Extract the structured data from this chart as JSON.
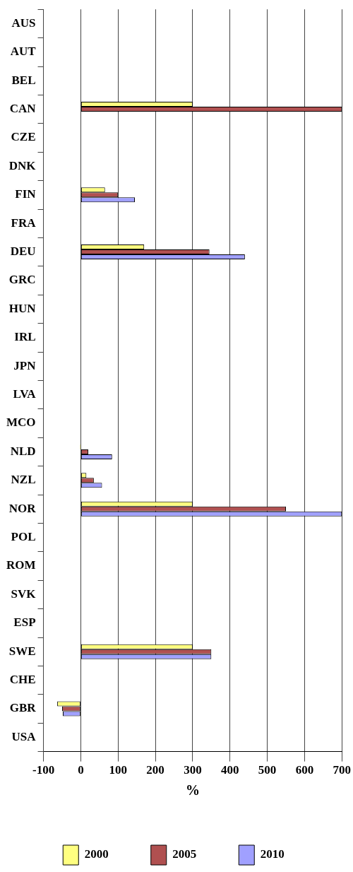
{
  "chart_data": {
    "type": "bar",
    "orientation": "horizontal",
    "xlabel": "%",
    "categories": [
      "AUS",
      "AUT",
      "BEL",
      "CAN",
      "CZE",
      "DNK",
      "FIN",
      "FRA",
      "DEU",
      "GRC",
      "HUN",
      "IRL",
      "JPN",
      "LVA",
      "MCO",
      "NLD",
      "NZL",
      "NOR",
      "POL",
      "ROM",
      "SVK",
      "ESP",
      "SWE",
      "CHE",
      "GBR",
      "USA"
    ],
    "series": [
      {
        "name": "2000",
        "color": "#ffff80",
        "values": [
          null,
          null,
          null,
          300,
          null,
          null,
          65,
          null,
          170,
          null,
          null,
          null,
          null,
          null,
          null,
          -2,
          15,
          300,
          null,
          null,
          null,
          null,
          300,
          null,
          -63,
          null
        ]
      },
      {
        "name": "2005",
        "color": "#b05050",
        "values": [
          null,
          null,
          null,
          700,
          null,
          null,
          100,
          null,
          345,
          null,
          null,
          null,
          null,
          null,
          null,
          20,
          35,
          550,
          null,
          null,
          null,
          null,
          350,
          null,
          -50,
          null
        ]
      },
      {
        "name": "2010",
        "color": "#a0a0ff",
        "values": [
          null,
          null,
          null,
          null,
          null,
          null,
          145,
          null,
          440,
          null,
          null,
          null,
          null,
          null,
          null,
          84,
          57,
          700,
          null,
          null,
          null,
          null,
          350,
          null,
          -48,
          null
        ]
      }
    ],
    "xlim": [
      -100,
      700
    ],
    "xticks": [
      -100,
      0,
      100,
      200,
      300,
      400,
      500,
      600,
      700
    ],
    "grid": "x",
    "legend": "bottom"
  }
}
